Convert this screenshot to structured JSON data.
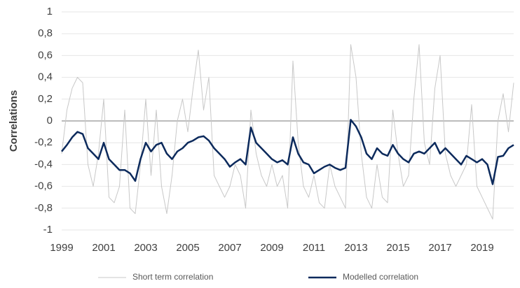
{
  "chart_data": {
    "type": "line",
    "y_label": "Correlations",
    "x": [
      1999,
      1999.25,
      1999.5,
      1999.75,
      2000,
      2000.25,
      2000.5,
      2000.75,
      2001,
      2001.25,
      2001.5,
      2001.75,
      2002,
      2002.25,
      2002.5,
      2002.75,
      2003,
      2003.25,
      2003.5,
      2003.75,
      2004,
      2004.25,
      2004.5,
      2004.75,
      2005,
      2005.25,
      2005.5,
      2005.75,
      2006,
      2006.25,
      2006.5,
      2006.75,
      2007,
      2007.25,
      2007.5,
      2007.75,
      2008,
      2008.25,
      2008.5,
      2008.75,
      2009,
      2009.25,
      2009.5,
      2009.75,
      2010,
      2010.25,
      2010.5,
      2010.75,
      2011,
      2011.25,
      2011.5,
      2011.75,
      2012,
      2012.25,
      2012.5,
      2012.75,
      2013,
      2013.25,
      2013.5,
      2013.75,
      2014,
      2014.25,
      2014.5,
      2014.75,
      2015,
      2015.25,
      2015.5,
      2015.75,
      2016,
      2016.25,
      2016.5,
      2016.75,
      2017,
      2017.25,
      2017.5,
      2017.75,
      2018,
      2018.25,
      2018.5,
      2018.75,
      2019,
      2019.25,
      2019.5,
      2019.75,
      2020,
      2020.25,
      2020.5
    ],
    "series": [
      {
        "name": "Short term correlation",
        "color": "#c8c8c8",
        "width": 1,
        "values": [
          -0.3,
          0.1,
          0.3,
          0.4,
          0.35,
          -0.4,
          -0.6,
          -0.3,
          0.2,
          -0.7,
          -0.75,
          -0.6,
          0.1,
          -0.8,
          -0.85,
          -0.4,
          0.2,
          -0.5,
          0.1,
          -0.6,
          -0.85,
          -0.5,
          0.0,
          0.2,
          -0.1,
          0.3,
          0.65,
          0.1,
          0.4,
          -0.5,
          -0.6,
          -0.7,
          -0.6,
          -0.4,
          -0.5,
          -0.8,
          0.1,
          -0.3,
          -0.5,
          -0.6,
          -0.4,
          -0.6,
          -0.5,
          -0.8,
          0.55,
          -0.2,
          -0.6,
          -0.7,
          -0.5,
          -0.75,
          -0.8,
          -0.4,
          -0.6,
          -0.7,
          -0.8,
          0.7,
          0.4,
          -0.3,
          -0.7,
          -0.8,
          -0.4,
          -0.7,
          -0.75,
          0.1,
          -0.3,
          -0.6,
          -0.5,
          0.2,
          0.7,
          -0.2,
          -0.4,
          0.3,
          0.6,
          -0.3,
          -0.5,
          -0.6,
          -0.5,
          -0.4,
          0.15,
          -0.6,
          -0.7,
          -0.8,
          -0.9,
          0.0,
          0.25,
          -0.1,
          0.35
        ]
      },
      {
        "name": "Modelled correlation",
        "color": "#0c2a5c",
        "width": 2.5,
        "values": [
          -0.28,
          -0.22,
          -0.15,
          -0.1,
          -0.12,
          -0.25,
          -0.3,
          -0.35,
          -0.2,
          -0.35,
          -0.4,
          -0.45,
          -0.45,
          -0.48,
          -0.55,
          -0.35,
          -0.2,
          -0.28,
          -0.22,
          -0.2,
          -0.3,
          -0.35,
          -0.28,
          -0.25,
          -0.2,
          -0.18,
          -0.15,
          -0.14,
          -0.18,
          -0.25,
          -0.3,
          -0.35,
          -0.42,
          -0.38,
          -0.35,
          -0.4,
          -0.06,
          -0.2,
          -0.25,
          -0.3,
          -0.35,
          -0.38,
          -0.36,
          -0.4,
          -0.15,
          -0.3,
          -0.38,
          -0.4,
          -0.48,
          -0.45,
          -0.42,
          -0.4,
          -0.43,
          -0.45,
          -0.43,
          0.01,
          -0.05,
          -0.15,
          -0.3,
          -0.35,
          -0.25,
          -0.3,
          -0.32,
          -0.22,
          -0.3,
          -0.35,
          -0.38,
          -0.3,
          -0.28,
          -0.3,
          -0.25,
          -0.2,
          -0.3,
          -0.25,
          -0.3,
          -0.35,
          -0.4,
          -0.32,
          -0.35,
          -0.38,
          -0.35,
          -0.4,
          -0.58,
          -0.33,
          -0.32,
          -0.25,
          -0.22
        ]
      }
    ],
    "xlim": [
      1999,
      2020.5
    ],
    "xticks": [
      1999,
      2001,
      2003,
      2005,
      2007,
      2009,
      2011,
      2013,
      2015,
      2017,
      2019
    ],
    "ylim": [
      -1,
      1
    ],
    "yticks": [
      {
        "value": -1,
        "label": "-1"
      },
      {
        "value": -0.8,
        "label": "-0,8"
      },
      {
        "value": -0.6,
        "label": "-0,6"
      },
      {
        "value": -0.4,
        "label": "-0,4"
      },
      {
        "value": -0.2,
        "label": "-0,2"
      },
      0,
      {
        "value": 0.2,
        "label": "0,2"
      },
      {
        "value": 0.4,
        "label": "0,4"
      },
      {
        "value": 0.6,
        "label": "0,6"
      },
      {
        "value": 0.8,
        "label": "0,8"
      },
      1
    ],
    "grid": true,
    "legend": "bottom"
  }
}
